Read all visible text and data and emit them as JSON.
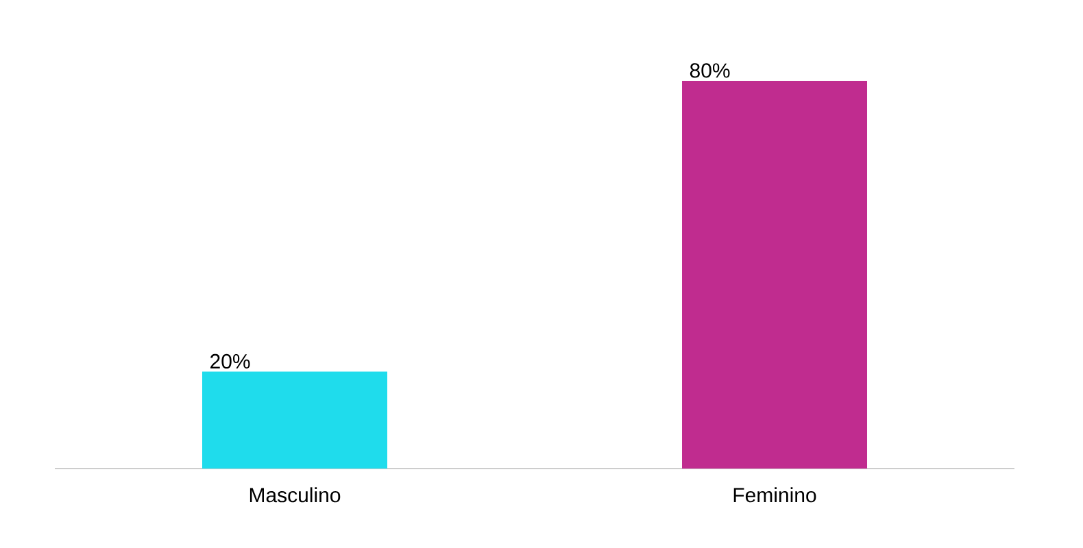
{
  "chart_data": {
    "type": "bar",
    "categories": [
      "Masculino",
      "Feminino"
    ],
    "values": [
      20,
      80
    ],
    "colors": [
      "#1fdcec",
      "#c02c8f"
    ],
    "value_labels": [
      "20%",
      "80%"
    ],
    "grid": false
  }
}
